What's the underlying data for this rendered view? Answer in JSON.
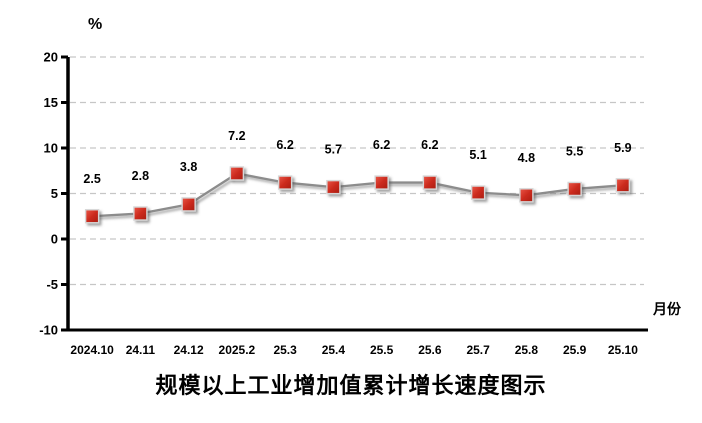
{
  "chart_data": {
    "type": "line",
    "title": "规模以上工业增加值累计增长速度图示",
    "ylabel": "%",
    "xlabel": "月份",
    "categories": [
      "2024.10",
      "24.11",
      "24.12",
      "2025.2",
      "25.3",
      "25.4",
      "25.5",
      "25.6",
      "25.7",
      "25.8",
      "25.9",
      "25.10"
    ],
    "values": [
      2.5,
      2.8,
      3.8,
      7.2,
      6.2,
      5.7,
      6.2,
      6.2,
      5.1,
      4.8,
      5.5,
      5.9
    ],
    "data_labels": [
      "2.5",
      "2.8",
      "3.8",
      "7.2",
      "6.2",
      "5.7",
      "6.2",
      "6.2",
      "5.1",
      "4.8",
      "5.5",
      "5.9"
    ],
    "ylim": [
      -10,
      20
    ],
    "ytick_step": 5,
    "ytick_labels": [
      "20",
      "15",
      "10",
      "5",
      "0",
      "-5",
      "-10"
    ],
    "grid": true,
    "legend_position": "none",
    "colors": {
      "marker_fill_light": "#ea5647",
      "marker_fill": "#cc2b1e",
      "marker_fill_dark": "#a81d12",
      "marker_border": "#d6d6d6",
      "line": "#8c8c8c",
      "gridline": "#c6c6c6",
      "axis": "#000000",
      "text": "#000000",
      "background": "#ffffff"
    }
  }
}
